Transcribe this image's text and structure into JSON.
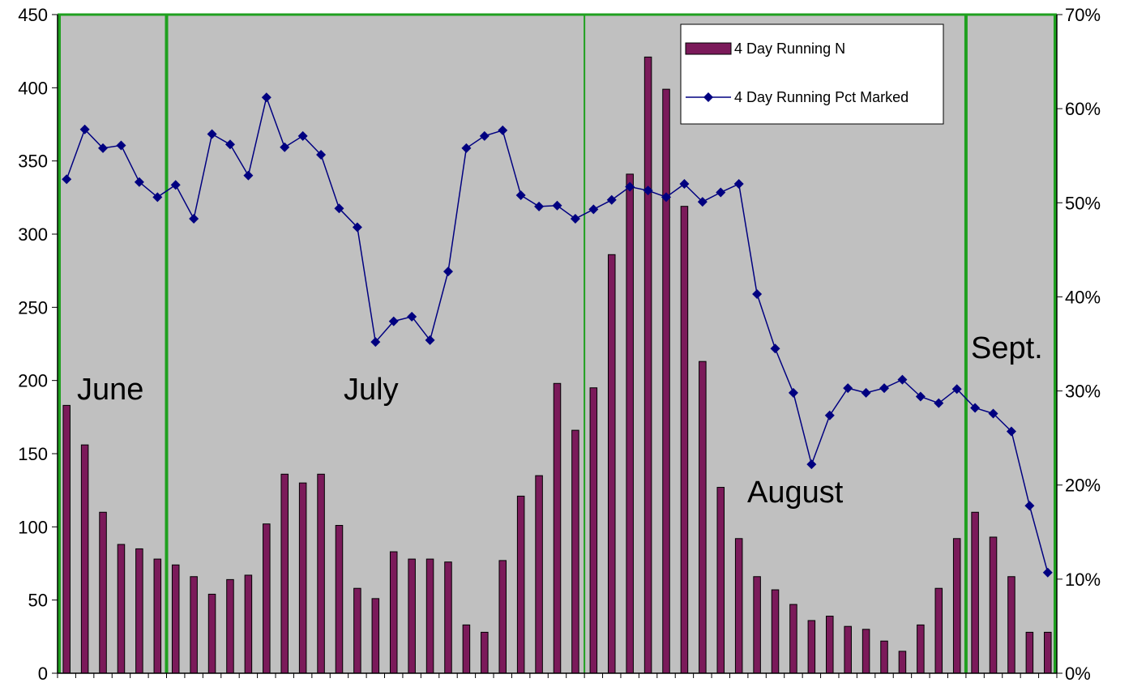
{
  "chart_data": {
    "type": "bar",
    "title": "",
    "xlabel": "",
    "ylabel": "",
    "ylim": [
      0,
      450
    ],
    "y2lim": [
      0,
      0.7
    ],
    "yticks": [
      "0",
      "50",
      "100",
      "150",
      "200",
      "250",
      "300",
      "350",
      "400",
      "450"
    ],
    "y2ticks": [
      "0%",
      "10%",
      "20%",
      "30%",
      "40%",
      "50%",
      "60%",
      "70%"
    ],
    "grid": false,
    "legend_placement": "top-right",
    "colors": {
      "plot_bg": "#C0C0C0",
      "bar": "#7B1A5A",
      "line": "#000080",
      "month_lines": "#1FA01F"
    },
    "month_labels": [
      "June",
      "July",
      "August",
      "Sept."
    ],
    "month_boundaries_after_index": [
      5,
      28,
      49
    ],
    "series": [
      {
        "name": "4 Day Running N",
        "type": "bar",
        "axis": "left",
        "values": [
          183,
          156,
          110,
          88,
          85,
          78,
          74,
          66,
          54,
          64,
          67,
          102,
          136,
          130,
          136,
          101,
          58,
          51,
          83,
          78,
          78,
          76,
          33,
          28,
          77,
          121,
          135,
          198,
          166,
          195,
          286,
          341,
          421,
          399,
          319,
          213,
          127,
          92,
          66,
          57,
          47,
          36,
          39,
          32,
          30,
          22,
          15,
          33,
          58,
          92,
          110,
          93,
          66,
          28,
          28
        ]
      },
      {
        "name": "4 Day Running Pct Marked",
        "type": "line",
        "axis": "right",
        "values": [
          0.525,
          0.578,
          0.558,
          0.561,
          0.522,
          0.506,
          0.519,
          0.483,
          0.573,
          0.562,
          0.529,
          0.612,
          0.559,
          0.571,
          0.551,
          0.494,
          0.474,
          0.352,
          0.374,
          0.379,
          0.354,
          0.427,
          0.558,
          0.571,
          0.577,
          0.508,
          0.496,
          0.497,
          0.483,
          0.493,
          0.503,
          0.517,
          0.513,
          0.506,
          0.52,
          0.501,
          0.511,
          0.52,
          0.403,
          0.345,
          0.298,
          0.222,
          0.274,
          0.303,
          0.298,
          0.303,
          0.312,
          0.294,
          0.287,
          0.302,
          0.282,
          0.276,
          0.257,
          0.178,
          0.107
        ]
      }
    ]
  }
}
